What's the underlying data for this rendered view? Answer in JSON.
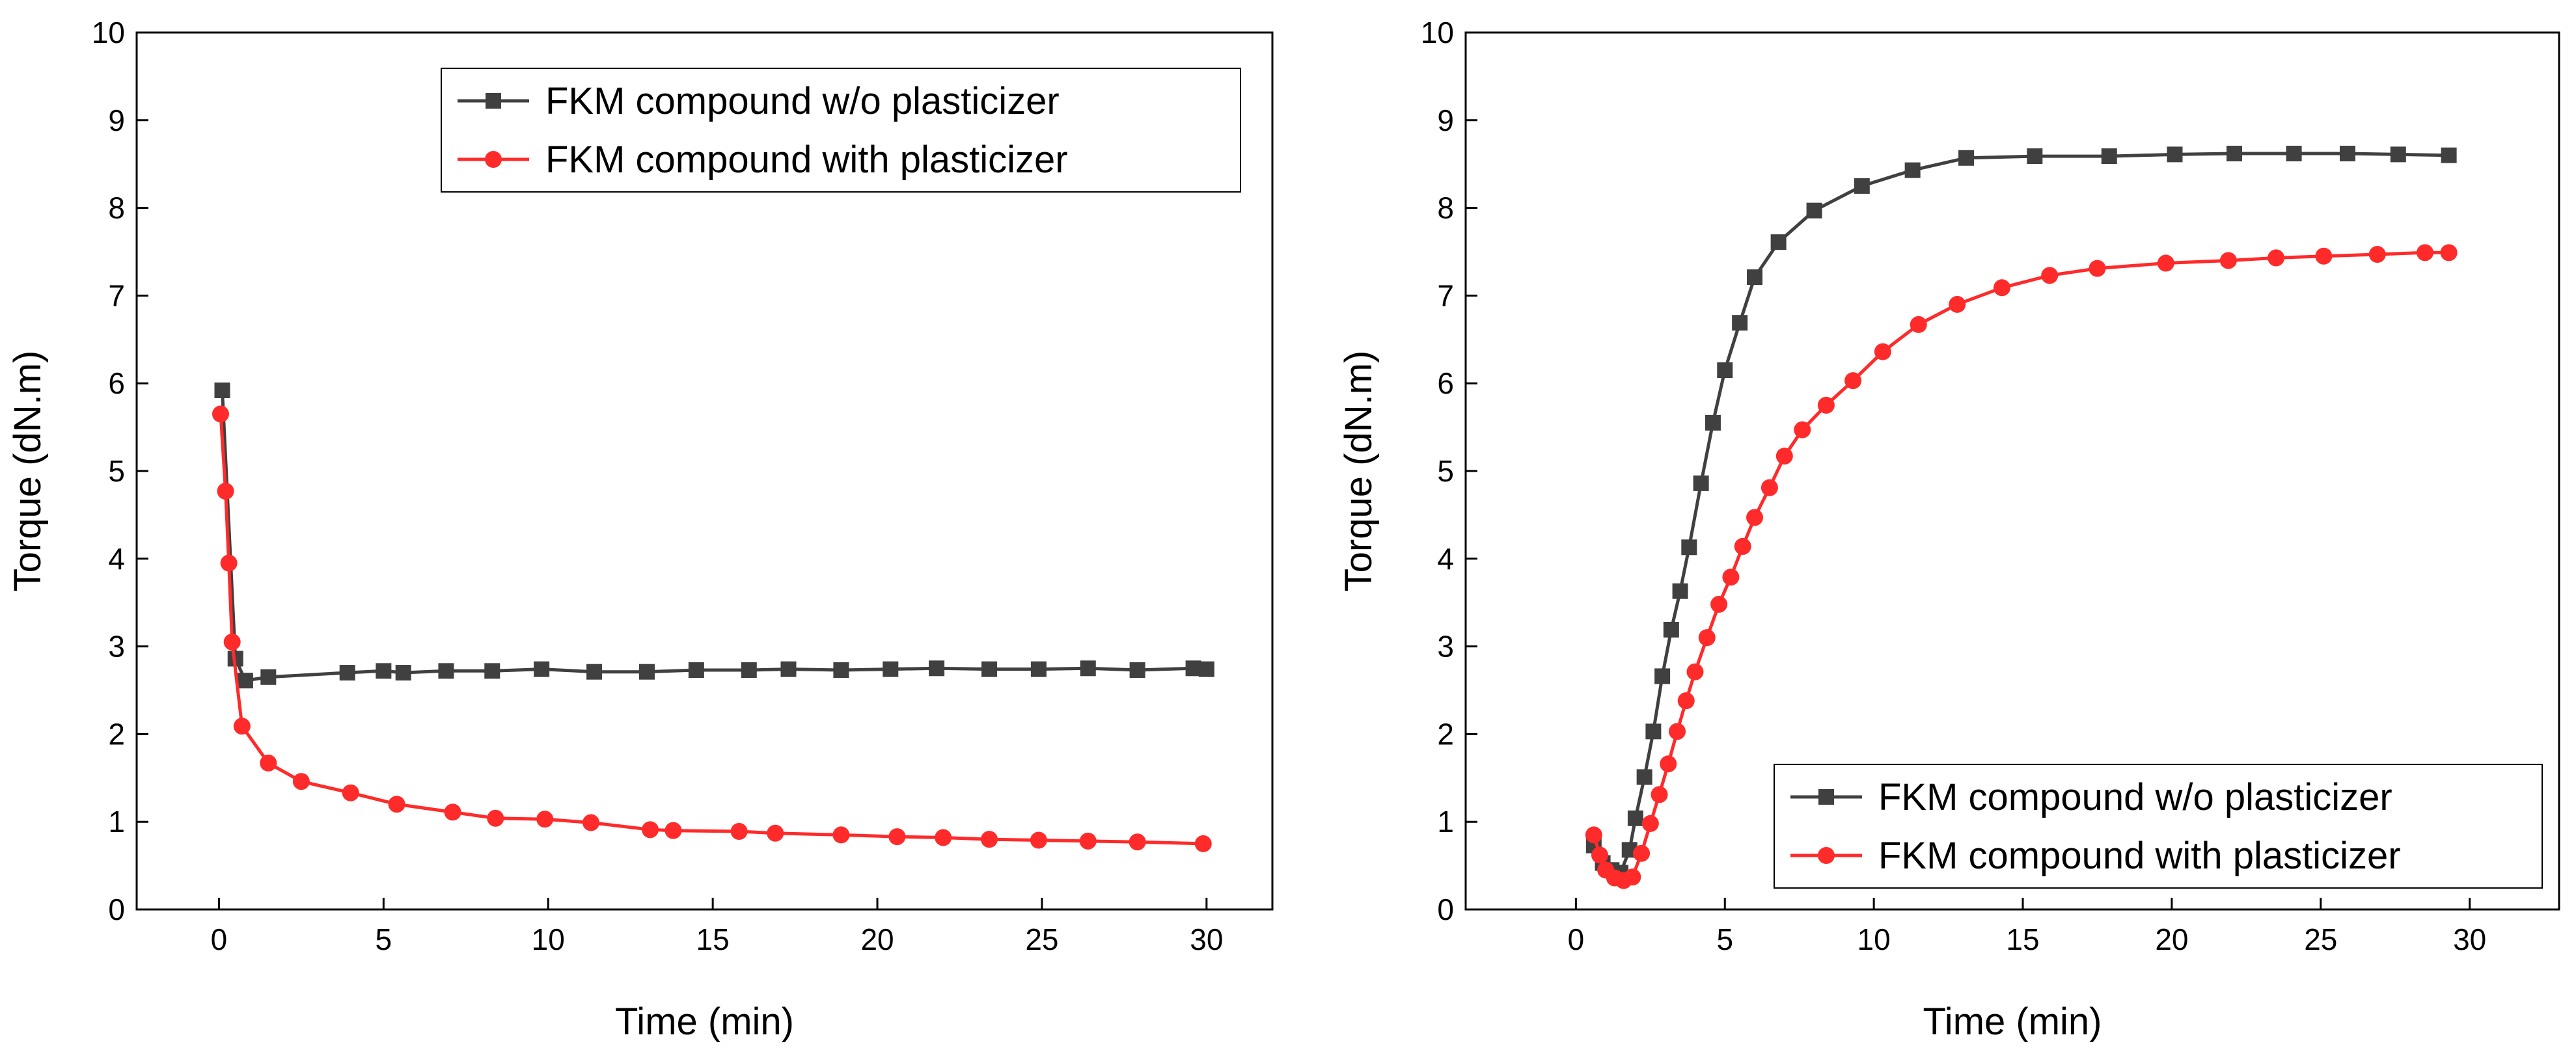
{
  "chart_data": [
    {
      "type": "line",
      "title": "",
      "xlabel": "Time (min)",
      "ylabel": "Torque (dN.m)",
      "xlim": [
        -2.5,
        32
      ],
      "ylim": [
        0,
        10
      ],
      "xticks": [
        0,
        5,
        10,
        15,
        20,
        25,
        30
      ],
      "yticks": [
        0,
        1,
        2,
        3,
        4,
        5,
        6,
        7,
        8,
        9,
        10
      ],
      "legend_position": "top-right",
      "series": [
        {
          "name": "FKM compound w/o plasticizer",
          "color": "#404040",
          "marker": "square",
          "x": [
            0.1,
            0.5,
            0.8,
            1.5,
            3.9,
            5.0,
            5.6,
            6.9,
            8.3,
            9.8,
            11.4,
            13.0,
            14.5,
            16.1,
            17.3,
            18.9,
            20.4,
            21.8,
            23.4,
            24.9,
            26.4,
            27.9,
            29.6,
            30.0
          ],
          "y": [
            5.92,
            2.86,
            2.61,
            2.65,
            2.7,
            2.72,
            2.7,
            2.72,
            2.72,
            2.74,
            2.71,
            2.71,
            2.73,
            2.73,
            2.74,
            2.73,
            2.74,
            2.75,
            2.74,
            2.74,
            2.75,
            2.73,
            2.75,
            2.74
          ]
        },
        {
          "name": "FKM compound with plasticizer",
          "color": "#ff2a2a",
          "marker": "circle",
          "x": [
            0.05,
            0.2,
            0.3,
            0.4,
            0.7,
            1.5,
            2.5,
            4.0,
            5.4,
            7.1,
            8.4,
            9.9,
            11.3,
            13.1,
            13.8,
            15.8,
            16.9,
            18.9,
            20.6,
            22.0,
            23.4,
            24.9,
            26.4,
            27.9,
            29.9
          ],
          "y": [
            5.65,
            4.77,
            3.95,
            3.05,
            2.09,
            1.67,
            1.46,
            1.33,
            1.2,
            1.11,
            1.04,
            1.03,
            0.99,
            0.91,
            0.9,
            0.89,
            0.87,
            0.85,
            0.83,
            0.82,
            0.8,
            0.79,
            0.78,
            0.77,
            0.75
          ]
        }
      ]
    },
    {
      "type": "line",
      "title": "",
      "xlabel": "Time (min)",
      "ylabel": "Torque (dN.m)",
      "xlim": [
        -3.7,
        33
      ],
      "ylim": [
        0,
        10
      ],
      "xticks": [
        0,
        5,
        10,
        15,
        20,
        25,
        30
      ],
      "yticks": [
        0,
        1,
        2,
        3,
        4,
        5,
        6,
        7,
        8,
        9,
        10
      ],
      "legend_position": "bottom-right",
      "series": [
        {
          "name": "FKM compound w/o plasticizer",
          "color": "#404040",
          "marker": "square",
          "x": [
            0.6,
            0.9,
            1.2,
            1.5,
            1.8,
            2.0,
            2.3,
            2.6,
            2.9,
            3.2,
            3.5,
            3.8,
            4.2,
            4.6,
            5.0,
            5.5,
            6.0,
            6.8,
            8.0,
            9.6,
            11.3,
            13.1,
            15.4,
            17.9,
            20.1,
            22.1,
            24.1,
            25.9,
            27.6,
            29.3
          ],
          "y": [
            0.73,
            0.53,
            0.45,
            0.42,
            0.68,
            1.04,
            1.51,
            2.03,
            2.66,
            3.19,
            3.63,
            4.13,
            4.86,
            5.55,
            6.15,
            6.69,
            7.21,
            7.61,
            7.97,
            8.25,
            8.43,
            8.57,
            8.59,
            8.59,
            8.61,
            8.62,
            8.62,
            8.62,
            8.61,
            8.6
          ]
        },
        {
          "name": "FKM compound with plasticizer",
          "color": "#ff2a2a",
          "marker": "circle",
          "x": [
            0.6,
            0.8,
            1.0,
            1.3,
            1.6,
            1.9,
            2.2,
            2.5,
            2.8,
            3.1,
            3.4,
            3.7,
            4.0,
            4.4,
            4.8,
            5.2,
            5.6,
            6.0,
            6.5,
            7.0,
            7.6,
            8.4,
            9.3,
            10.3,
            11.5,
            12.8,
            14.3,
            15.9,
            17.5,
            19.8,
            21.9,
            23.5,
            25.1,
            26.9,
            28.5,
            29.3
          ],
          "y": [
            0.85,
            0.62,
            0.45,
            0.36,
            0.33,
            0.37,
            0.64,
            0.98,
            1.31,
            1.66,
            2.03,
            2.38,
            2.71,
            3.1,
            3.48,
            3.79,
            4.14,
            4.47,
            4.81,
            5.17,
            5.47,
            5.75,
            6.03,
            6.36,
            6.67,
            6.9,
            7.09,
            7.23,
            7.31,
            7.37,
            7.4,
            7.43,
            7.45,
            7.47,
            7.49,
            7.49
          ]
        }
      ]
    }
  ]
}
